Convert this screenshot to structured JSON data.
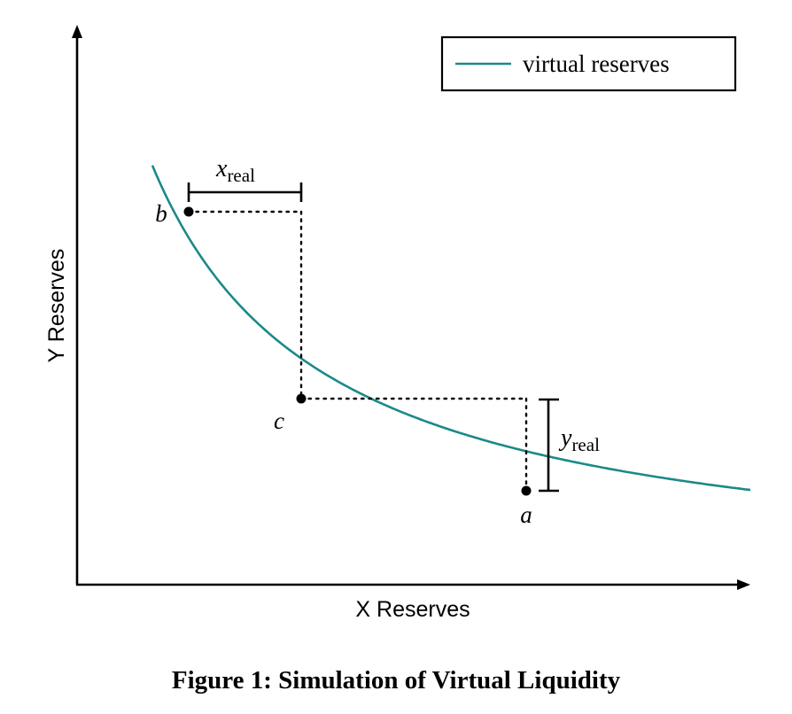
{
  "chart_data": {
    "type": "line",
    "xlabel": "X Reserves",
    "ylabel": "Y Reserves",
    "legend": {
      "entries": [
        "virtual reserves"
      ],
      "position": "top-right"
    },
    "series": [
      {
        "name": "virtual reserves",
        "color": "#1a8a88",
        "relation": "x*y = k"
      }
    ],
    "points": [
      {
        "label": "a"
      },
      {
        "label": "b"
      },
      {
        "label": "c"
      }
    ],
    "annotations": {
      "x_real": {
        "main": "x",
        "sub": "real"
      },
      "y_real": {
        "main": "y",
        "sub": "real"
      }
    },
    "grid": false
  },
  "caption": "Figure 1: Simulation of Virtual Liquidity"
}
